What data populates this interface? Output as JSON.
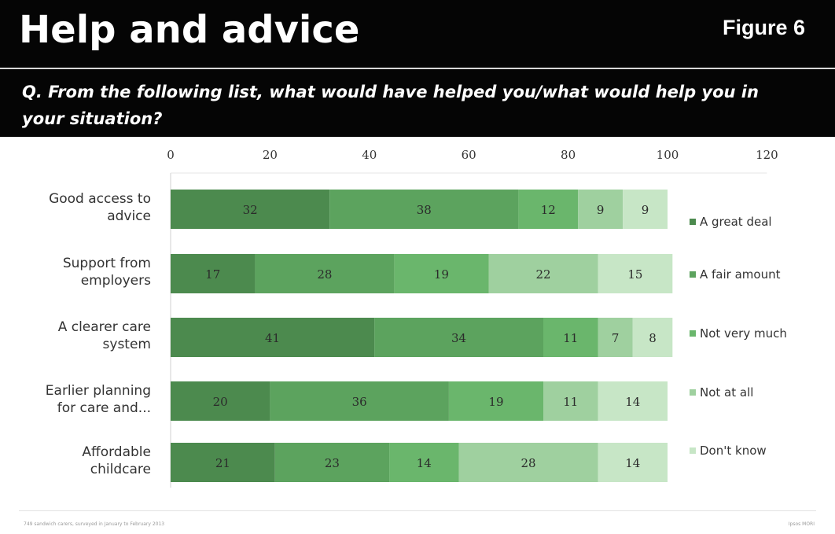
{
  "header": {
    "title": "Help and advice",
    "figure_label": "Figure 6",
    "question": "Q. From the following list, what would have helped you/what would help you in your situation?"
  },
  "footer": {
    "note": "749 sandwich carers, surveyed in January to February 2013",
    "source": "Ipsos MORI"
  },
  "colors": {
    "header_bg": "#050505",
    "series": [
      "#4c8a4e",
      "#5ca35e",
      "#6ab66c",
      "#9fd09f",
      "#c7e6c6"
    ]
  },
  "chart_data": {
    "type": "bar",
    "orientation": "horizontal",
    "stacked": true,
    "xlim": [
      0,
      120
    ],
    "xticks": [
      "0",
      "20",
      "40",
      "60",
      "80",
      "100",
      "120"
    ],
    "xaxis_position": "top",
    "grid": false,
    "legend_position": "right",
    "categories": [
      [
        "Good access to",
        "advice"
      ],
      [
        "Support from",
        "employers"
      ],
      [
        "A clearer care",
        "system"
      ],
      [
        "Earlier planning",
        "for care and..."
      ],
      [
        "Affordable",
        "childcare"
      ]
    ],
    "series": [
      {
        "name": "A great deal",
        "values": [
          32,
          17,
          41,
          20,
          21
        ]
      },
      {
        "name": "A fair amount",
        "values": [
          38,
          28,
          34,
          36,
          23
        ]
      },
      {
        "name": "Not very much",
        "values": [
          12,
          19,
          11,
          19,
          14
        ]
      },
      {
        "name": "Not at all",
        "values": [
          9,
          22,
          7,
          11,
          28
        ]
      },
      {
        "name": "Don't know",
        "values": [
          9,
          15,
          8,
          14,
          14
        ]
      }
    ]
  }
}
